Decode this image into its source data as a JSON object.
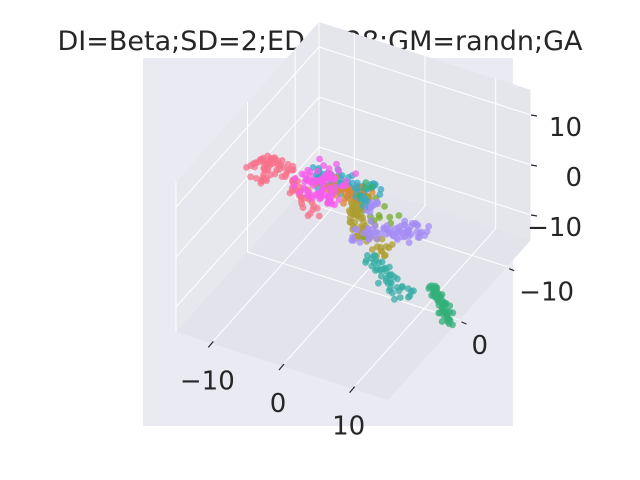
{
  "chart_data": {
    "type": "scatter",
    "projection": "3d",
    "title": "DI=Beta;SD=2;ED=128;GM=randn;GA",
    "xlabel": "",
    "ylabel": "",
    "zlabel": "",
    "xlim": [
      -15,
      15
    ],
    "ylim": [
      -15,
      15
    ],
    "zlim": [
      -15,
      15
    ],
    "x_ticks": [
      -10,
      0,
      10
    ],
    "y_ticks": [
      -10,
      0
    ],
    "z_ticks": [
      -10,
      0,
      10
    ],
    "x_tick_labels": [
      "−10",
      "0",
      "10"
    ],
    "y_tick_labels": [
      "−10",
      "0"
    ],
    "z_tick_labels": [
      "−10",
      "0",
      "10"
    ],
    "grid": true,
    "legend": "none",
    "background_color": "#eaeaf2",
    "series": [
      {
        "color": "#f77189",
        "kind": "arc",
        "p0": [
          -12,
          2,
          7
        ],
        "p1": [
          -5,
          6,
          14
        ],
        "p2": [
          -3,
          4,
          2
        ],
        "count": 70,
        "jitter": 0.5
      },
      {
        "color": "#f77189",
        "kind": "cluster",
        "center": [
          -11,
          3,
          6
        ],
        "spread": [
          1,
          0.8,
          0.8
        ],
        "count": 20
      },
      {
        "color": "#dc8932",
        "kind": "cluster",
        "center": [
          -2,
          -1,
          2
        ],
        "spread": [
          2,
          0.6,
          0.6
        ],
        "count": 38
      },
      {
        "color": "#ae9d31",
        "kind": "arc",
        "p0": [
          2,
          0,
          3
        ],
        "p1": [
          6,
          12,
          15
        ],
        "p2": [
          10,
          8,
          4
        ],
        "count": 80,
        "jitter": 0.6
      },
      {
        "color": "#77ab31",
        "kind": "cluster",
        "center": [
          7,
          5,
          8
        ],
        "spread": [
          1,
          1,
          1
        ],
        "count": 12
      },
      {
        "color": "#33b07a",
        "kind": "line",
        "p0": [
          13,
          3,
          -6
        ],
        "p1": [
          17,
          5,
          -9
        ],
        "count": 55,
        "jitter": 0.4
      },
      {
        "color": "#33b07a",
        "kind": "cluster",
        "center": [
          -1,
          -4,
          0
        ],
        "spread": [
          0.4,
          0.4,
          0.4
        ],
        "count": 5
      },
      {
        "color": "#36ada4",
        "kind": "line",
        "p0": [
          2,
          0,
          -8
        ],
        "p1": [
          6,
          -2,
          -17
        ],
        "count": 45,
        "jitter": 0.6
      },
      {
        "color": "#38a9c5",
        "kind": "arc",
        "p0": [
          -5,
          0,
          5
        ],
        "p1": [
          -1,
          4,
          8
        ],
        "p2": [
          4,
          0,
          6
        ],
        "count": 80,
        "jitter": 0.7
      },
      {
        "color": "#38a9c5",
        "kind": "line",
        "p0": [
          -1,
          -2,
          2
        ],
        "p1": [
          0,
          -3,
          -2
        ],
        "count": 12,
        "jitter": 0.3
      },
      {
        "color": "#a48cf4",
        "kind": "arc",
        "p0": [
          0,
          0,
          -5
        ],
        "p1": [
          5,
          -2,
          -3
        ],
        "p2": [
          7,
          -4,
          -6
        ],
        "count": 70,
        "jitter": 0.6
      },
      {
        "color": "#a48cf4",
        "kind": "line",
        "p0": [
          1,
          -3,
          -1
        ],
        "p1": [
          0,
          -3,
          -3
        ],
        "count": 10,
        "jitter": 0.3
      },
      {
        "color": "#f45deb",
        "kind": "cluster",
        "center": [
          -9,
          -7,
          -6
        ],
        "spread": [
          1.4,
          1.2,
          1
        ],
        "count": 65
      },
      {
        "color": "#f45deb",
        "kind": "line",
        "p0": [
          -7,
          -3,
          -3
        ],
        "p1": [
          -3,
          0,
          0
        ],
        "count": 18,
        "jitter": 0.4
      },
      {
        "color": "#f45deb",
        "kind": "line",
        "p0": [
          -13,
          -9,
          -9
        ],
        "p1": [
          -11,
          -7,
          -7
        ],
        "count": 10,
        "jitter": 0.4
      }
    ]
  }
}
